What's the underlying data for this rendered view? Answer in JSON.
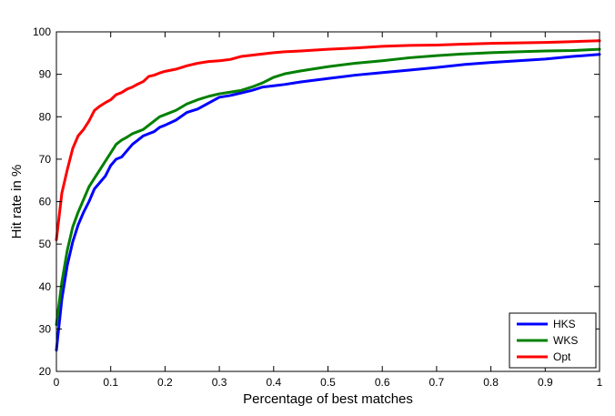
{
  "chart_data": {
    "type": "line",
    "title": "",
    "xlabel": "Percentage of best matches",
    "ylabel": "Hit rate in %",
    "xlim": [
      0,
      1
    ],
    "ylim": [
      20,
      100
    ],
    "xticks": [
      0,
      0.1,
      0.2,
      0.3,
      0.4,
      0.5,
      0.6,
      0.7,
      0.8,
      0.9,
      1
    ],
    "xtick_labels": [
      "0",
      "0.1",
      "0.2",
      "0.3",
      "0.4",
      "0.5",
      "0.6",
      "0.7",
      "0.8",
      "0.9",
      "1"
    ],
    "yticks": [
      20,
      30,
      40,
      50,
      60,
      70,
      80,
      90,
      100
    ],
    "ytick_labels": [
      "20",
      "30",
      "40",
      "50",
      "60",
      "70",
      "80",
      "90",
      "100"
    ],
    "grid": false,
    "legend_position": "bottom-right",
    "series": [
      {
        "name": "HKS",
        "color": "#0000ff",
        "x": [
          0,
          0.01,
          0.02,
          0.03,
          0.04,
          0.05,
          0.06,
          0.07,
          0.08,
          0.09,
          0.1,
          0.11,
          0.12,
          0.13,
          0.14,
          0.15,
          0.16,
          0.17,
          0.18,
          0.19,
          0.2,
          0.22,
          0.24,
          0.26,
          0.28,
          0.3,
          0.32,
          0.34,
          0.36,
          0.38,
          0.4,
          0.42,
          0.45,
          0.5,
          0.55,
          0.6,
          0.65,
          0.7,
          0.75,
          0.8,
          0.85,
          0.9,
          0.95,
          1.0
        ],
        "y": [
          25,
          37,
          45,
          50.5,
          54.5,
          57.5,
          60,
          63,
          64.5,
          66,
          68.5,
          70,
          70.5,
          72,
          73.5,
          74.5,
          75.5,
          76,
          76.5,
          77.5,
          78,
          79.2,
          81,
          81.8,
          83.2,
          84.6,
          85,
          85.6,
          86.2,
          87,
          87.3,
          87.6,
          88.2,
          89,
          89.8,
          90.4,
          91,
          91.6,
          92.3,
          92.8,
          93.2,
          93.6,
          94.2,
          94.7
        ]
      },
      {
        "name": "WKS",
        "color": "#008000",
        "x": [
          0,
          0.01,
          0.02,
          0.03,
          0.04,
          0.05,
          0.06,
          0.07,
          0.08,
          0.09,
          0.1,
          0.11,
          0.12,
          0.13,
          0.14,
          0.15,
          0.16,
          0.17,
          0.18,
          0.19,
          0.2,
          0.22,
          0.24,
          0.26,
          0.28,
          0.3,
          0.32,
          0.34,
          0.36,
          0.38,
          0.4,
          0.42,
          0.45,
          0.5,
          0.55,
          0.6,
          0.65,
          0.7,
          0.75,
          0.8,
          0.85,
          0.9,
          0.95,
          1.0
        ],
        "y": [
          31,
          41,
          48.5,
          54,
          57.5,
          60.5,
          63.5,
          65.5,
          67.5,
          69.5,
          71.5,
          73.5,
          74.5,
          75.2,
          76,
          76.5,
          77,
          78,
          79,
          80,
          80.5,
          81.5,
          83,
          84,
          84.8,
          85.4,
          85.8,
          86.2,
          87,
          88,
          89.3,
          90.1,
          90.8,
          91.8,
          92.6,
          93.2,
          93.9,
          94.4,
          94.8,
          95.1,
          95.3,
          95.5,
          95.6,
          95.9
        ]
      },
      {
        "name": "Opt",
        "color": "#ff0000",
        "x": [
          0,
          0.01,
          0.02,
          0.03,
          0.04,
          0.05,
          0.06,
          0.07,
          0.08,
          0.09,
          0.1,
          0.11,
          0.12,
          0.13,
          0.14,
          0.15,
          0.16,
          0.17,
          0.18,
          0.19,
          0.2,
          0.22,
          0.24,
          0.26,
          0.28,
          0.3,
          0.32,
          0.34,
          0.36,
          0.38,
          0.4,
          0.42,
          0.45,
          0.5,
          0.55,
          0.6,
          0.65,
          0.7,
          0.75,
          0.8,
          0.85,
          0.9,
          0.95,
          1.0
        ],
        "y": [
          51,
          62,
          67.5,
          72.5,
          75.5,
          77,
          79,
          81.5,
          82.5,
          83.3,
          84,
          85.2,
          85.7,
          86.5,
          87,
          87.7,
          88.3,
          89.5,
          89.8,
          90.3,
          90.7,
          91.2,
          92,
          92.6,
          93,
          93.2,
          93.5,
          94.2,
          94.5,
          94.8,
          95.1,
          95.3,
          95.5,
          95.9,
          96.2,
          96.6,
          96.8,
          96.9,
          97.1,
          97.3,
          97.4,
          97.5,
          97.7,
          97.9
        ]
      }
    ]
  }
}
